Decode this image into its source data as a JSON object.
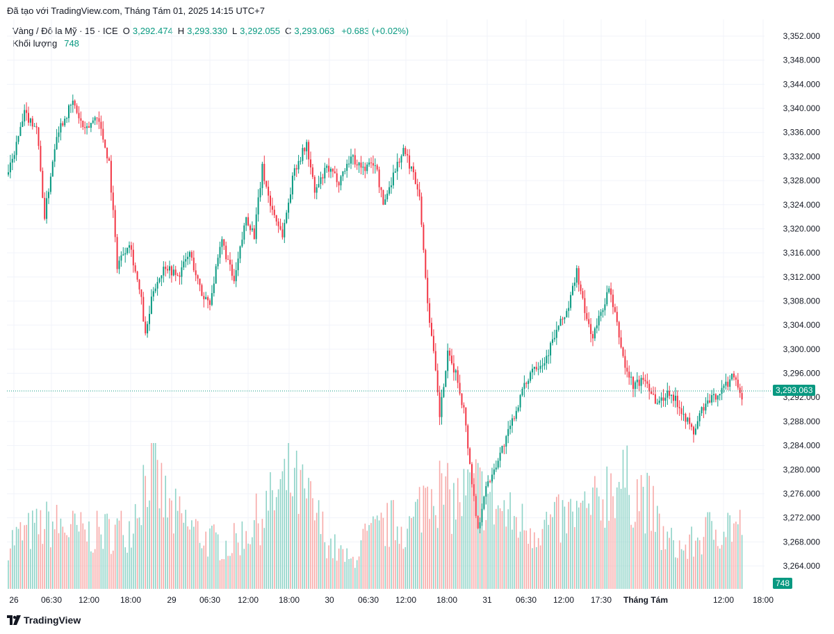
{
  "header": {
    "credit": "Đã tạo với TradingView.com, Tháng Tám 01, 2025 14:15 UTC+7"
  },
  "legend": {
    "symbol": "Vàng / Đô la Mỹ · 15 · ICE",
    "open_label": "O",
    "open": "3,292.474",
    "high_label": "H",
    "high": "3,293.330",
    "low_label": "L",
    "low": "3,292.055",
    "close_label": "C",
    "close": "3,293.063",
    "change": "+0.683 (+0.02%)",
    "volume_label": "Khối lượng",
    "volume": "748"
  },
  "brand": {
    "name": "TradingView"
  },
  "colors": {
    "up": "#089981",
    "down": "#f23645",
    "vol_up": "#8ed3c7",
    "vol_down": "#f7a9a7",
    "grid": "#f0f3fa",
    "axis_text": "#131722"
  },
  "chart_data": {
    "type": "candlestick",
    "interval": "15",
    "price_axis": {
      "ticks": [
        "3,352.000",
        "3,348.000",
        "3,344.000",
        "3,340.000",
        "3,336.000",
        "3,332.000",
        "3,328.000",
        "3,324.000",
        "3,320.000",
        "3,316.000",
        "3,312.000",
        "3,308.000",
        "3,304.000",
        "3,300.000",
        "3,296.000",
        "3,292.000",
        "3,288.000",
        "3,284.000",
        "3,280.000",
        "3,276.000",
        "3,272.000",
        "3,268.000",
        "3,264.000"
      ],
      "ylim": [
        3263,
        3353
      ],
      "last_price": "3,293.063",
      "last_price_value": 3293.063
    },
    "volume_last": "748",
    "time_axis": {
      "ticks": [
        "26",
        "06:30",
        "12:00",
        "18:00",
        "29",
        "06:30",
        "12:00",
        "18:00",
        "30",
        "06:30",
        "12:00",
        "18:00",
        "31",
        "06:30",
        "12:00",
        "17:30",
        "Tháng Tám",
        "12:00",
        "18:00"
      ],
      "bold": [
        "Tháng Tám"
      ]
    },
    "price_path": [
      [
        0,
        3329
      ],
      [
        8,
        3339
      ],
      [
        14,
        3337
      ],
      [
        18,
        3322
      ],
      [
        24,
        3336
      ],
      [
        32,
        3341
      ],
      [
        38,
        3336
      ],
      [
        44,
        3339
      ],
      [
        50,
        3331
      ],
      [
        54,
        3314
      ],
      [
        60,
        3318
      ],
      [
        66,
        3308
      ],
      [
        68,
        3302
      ],
      [
        72,
        3310
      ],
      [
        78,
        3314
      ],
      [
        84,
        3312
      ],
      [
        90,
        3316
      ],
      [
        96,
        3309
      ],
      [
        100,
        3308
      ],
      [
        106,
        3318
      ],
      [
        112,
        3311
      ],
      [
        118,
        3322
      ],
      [
        122,
        3319
      ],
      [
        126,
        3330
      ],
      [
        130,
        3324
      ],
      [
        136,
        3319
      ],
      [
        142,
        3330
      ],
      [
        148,
        3334
      ],
      [
        152,
        3326
      ],
      [
        158,
        3330
      ],
      [
        164,
        3328
      ],
      [
        170,
        3332
      ],
      [
        176,
        3330
      ],
      [
        182,
        3331
      ],
      [
        186,
        3324
      ],
      [
        192,
        3330
      ],
      [
        196,
        3333
      ],
      [
        200,
        3330
      ],
      [
        204,
        3326
      ],
      [
        206,
        3316
      ],
      [
        208,
        3308
      ],
      [
        212,
        3296
      ],
      [
        214,
        3289
      ],
      [
        218,
        3299
      ],
      [
        222,
        3296
      ],
      [
        226,
        3290
      ],
      [
        228,
        3284
      ],
      [
        230,
        3278
      ],
      [
        233,
        3270
      ],
      [
        236,
        3276
      ],
      [
        242,
        3281
      ],
      [
        248,
        3286
      ],
      [
        254,
        3292
      ],
      [
        260,
        3297
      ],
      [
        266,
        3298
      ],
      [
        272,
        3303
      ],
      [
        278,
        3307
      ],
      [
        282,
        3313
      ],
      [
        286,
        3306
      ],
      [
        290,
        3302
      ],
      [
        294,
        3306
      ],
      [
        298,
        3310
      ],
      [
        302,
        3304
      ],
      [
        306,
        3297
      ],
      [
        310,
        3294
      ],
      [
        316,
        3295
      ],
      [
        322,
        3291
      ],
      [
        328,
        3293
      ],
      [
        334,
        3290
      ],
      [
        340,
        3286
      ],
      [
        344,
        3290
      ],
      [
        350,
        3292
      ],
      [
        356,
        3294
      ],
      [
        360,
        3296
      ],
      [
        364,
        3292
      ]
    ],
    "volume_path": [
      [
        0,
        0.22
      ],
      [
        20,
        0.3
      ],
      [
        40,
        0.25
      ],
      [
        60,
        0.28
      ],
      [
        70,
        0.58
      ],
      [
        80,
        0.35
      ],
      [
        100,
        0.22
      ],
      [
        110,
        0.2
      ],
      [
        120,
        0.28
      ],
      [
        140,
        0.5
      ],
      [
        150,
        0.38
      ],
      [
        160,
        0.2
      ],
      [
        170,
        0.12
      ],
      [
        176,
        0.22
      ],
      [
        190,
        0.3
      ],
      [
        200,
        0.28
      ],
      [
        210,
        0.52
      ],
      [
        216,
        0.42
      ],
      [
        222,
        0.4
      ],
      [
        232,
        0.46
      ],
      [
        242,
        0.38
      ],
      [
        250,
        0.32
      ],
      [
        260,
        0.28
      ],
      [
        270,
        0.3
      ],
      [
        282,
        0.34
      ],
      [
        290,
        0.36
      ],
      [
        300,
        0.5
      ],
      [
        306,
        0.48
      ],
      [
        316,
        0.42
      ],
      [
        326,
        0.22
      ],
      [
        336,
        0.18
      ],
      [
        346,
        0.26
      ],
      [
        356,
        0.3
      ],
      [
        364,
        0.28
      ]
    ],
    "volume_max": 0.62,
    "candle_count": 365
  }
}
